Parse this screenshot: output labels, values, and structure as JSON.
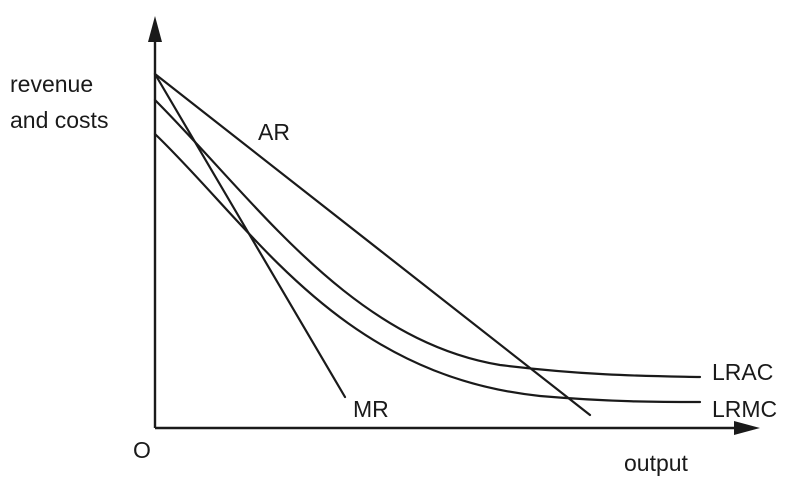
{
  "diagram": {
    "y_axis_label_line1": "revenue",
    "y_axis_label_line2": "and costs",
    "x_axis_label": "output",
    "origin_label": "O",
    "curve_labels": {
      "ar": "AR",
      "mr": "MR",
      "lrac": "LRAC",
      "lrmc": "LRMC"
    },
    "colors": {
      "ink": "#1a1a1a",
      "background": "#ffffff"
    }
  }
}
